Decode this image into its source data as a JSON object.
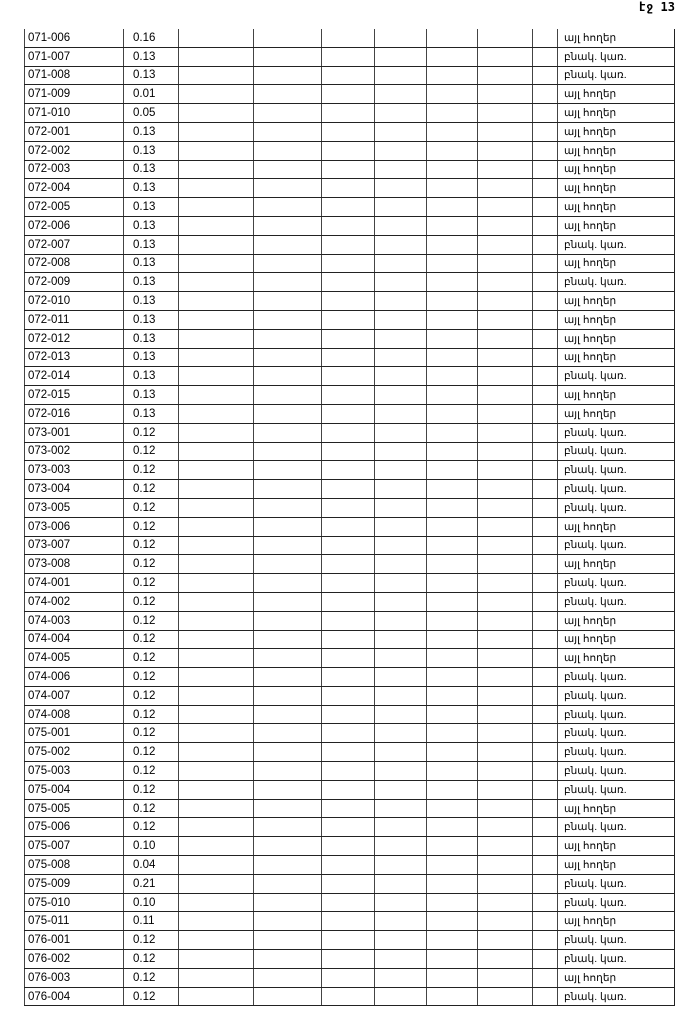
{
  "page_number": "էջ 13",
  "rows": [
    [
      "071-006",
      "0.16",
      "այլ հողեր"
    ],
    [
      "071-007",
      "0.13",
      "բնակ. կառ."
    ],
    [
      "071-008",
      "0.13",
      "բնակ. կառ."
    ],
    [
      "071-009",
      "0.01",
      "այլ հողեր"
    ],
    [
      "071-010",
      "0.05",
      "այլ հողեր"
    ],
    [
      "072-001",
      "0.13",
      "այլ հողեր"
    ],
    [
      "072-002",
      "0.13",
      "այլ հողեր"
    ],
    [
      "072-003",
      "0.13",
      "այլ հողեր"
    ],
    [
      "072-004",
      "0.13",
      "այլ հողեր"
    ],
    [
      "072-005",
      "0.13",
      "այլ հողեր"
    ],
    [
      "072-006",
      "0.13",
      "այլ հողեր"
    ],
    [
      "072-007",
      "0.13",
      "բնակ. կառ."
    ],
    [
      "072-008",
      "0.13",
      "այլ հողեր"
    ],
    [
      "072-009",
      "0.13",
      "բնակ. կառ."
    ],
    [
      "072-010",
      "0.13",
      "այլ հողեր"
    ],
    [
      "072-011",
      "0.13",
      "այլ հողեր"
    ],
    [
      "072-012",
      "0.13",
      "այլ հողեր"
    ],
    [
      "072-013",
      "0.13",
      "այլ հողեր"
    ],
    [
      "072-014",
      "0.13",
      "բնակ. կառ."
    ],
    [
      "072-015",
      "0.13",
      "այլ հողեր"
    ],
    [
      "072-016",
      "0.13",
      "այլ հողեր"
    ],
    [
      "073-001",
      "0.12",
      "բնակ. կառ."
    ],
    [
      "073-002",
      "0.12",
      "բնակ. կառ."
    ],
    [
      "073-003",
      "0.12",
      "բնակ. կառ."
    ],
    [
      "073-004",
      "0.12",
      "բնակ. կառ."
    ],
    [
      "073-005",
      "0.12",
      "բնակ. կառ."
    ],
    [
      "073-006",
      "0.12",
      "այլ հողեր"
    ],
    [
      "073-007",
      "0.12",
      "բնակ. կառ."
    ],
    [
      "073-008",
      "0.12",
      "այլ հողեր"
    ],
    [
      "074-001",
      "0.12",
      "բնակ. կառ."
    ],
    [
      "074-002",
      "0.12",
      "բնակ. կառ."
    ],
    [
      "074-003",
      "0.12",
      "այլ հողեր"
    ],
    [
      "074-004",
      "0.12",
      "այլ հողեր"
    ],
    [
      "074-005",
      "0.12",
      "այլ հողեր"
    ],
    [
      "074-006",
      "0.12",
      "բնակ. կառ."
    ],
    [
      "074-007",
      "0.12",
      "բնակ. կառ."
    ],
    [
      "074-008",
      "0.12",
      "բնակ. կառ."
    ],
    [
      "075-001",
      "0.12",
      "բնակ. կառ."
    ],
    [
      "075-002",
      "0.12",
      "բնակ. կառ."
    ],
    [
      "075-003",
      "0.12",
      "բնակ. կառ."
    ],
    [
      "075-004",
      "0.12",
      "բնակ. կառ."
    ],
    [
      "075-005",
      "0.12",
      "այլ հողեր"
    ],
    [
      "075-006",
      "0.12",
      "բնակ. կառ."
    ],
    [
      "075-007",
      "0.10",
      "այլ հողեր"
    ],
    [
      "075-008",
      "0.04",
      "այլ հողեր"
    ],
    [
      "075-009",
      "0.21",
      "բնակ. կառ."
    ],
    [
      "075-010",
      "0.10",
      "բնակ. կառ."
    ],
    [
      "075-011",
      "0.11",
      "այլ հողեր"
    ],
    [
      "076-001",
      "0.12",
      "բնակ. կառ."
    ],
    [
      "076-002",
      "0.12",
      "բնակ. կառ."
    ],
    [
      "076-003",
      "0.12",
      "այլ հողեր"
    ],
    [
      "076-004",
      "0.12",
      "բնակ. կառ."
    ]
  ]
}
